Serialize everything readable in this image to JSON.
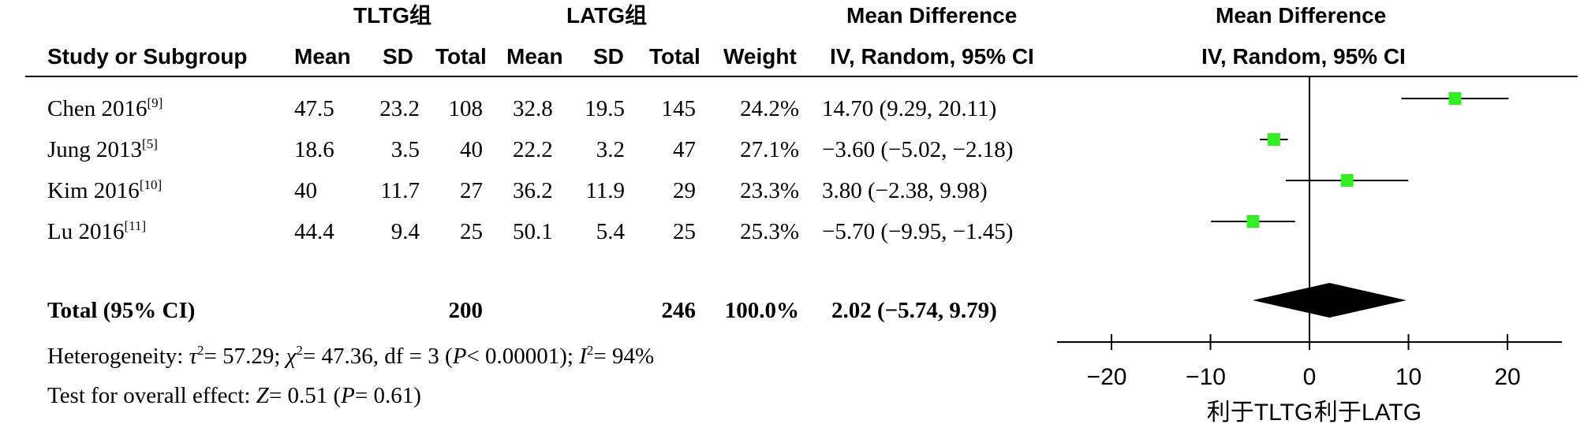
{
  "header": {
    "group1": "TLTG组",
    "group2": "LATG组",
    "md_table": "Mean Difference",
    "md_plot": "Mean Difference",
    "study_col": "Study or Subgroup",
    "mean1": "Mean",
    "sd1": "SD",
    "total1": "Total",
    "mean2": "Mean",
    "sd2": "SD",
    "total2": "Total",
    "weight": "Weight",
    "ci_table": "IV, Random, 95% CI",
    "ci_plot": "IV, Random, 95% CI"
  },
  "rows": [
    {
      "study": "Chen 2016",
      "ref": "[9]",
      "mean1": "47.5",
      "sd1": "23.2",
      "total1": "108",
      "mean2": "32.8",
      "sd2": "19.5",
      "total2": "145",
      "weight": "24.2%",
      "ci": "14.70 (9.29, 20.11)"
    },
    {
      "study": "Jung 2013",
      "ref": "[5]",
      "mean1": "18.6",
      "sd1": "3.5",
      "total1": "40",
      "mean2": "22.2",
      "sd2": "3.2",
      "total2": "47",
      "weight": "27.1%",
      "ci": "−3.60 (−5.02, −2.18)"
    },
    {
      "study": "Kim 2016",
      "ref": "[10]",
      "mean1": "40",
      "sd1": "11.7",
      "total1": "27",
      "mean2": "36.2",
      "sd2": "11.9",
      "total2": "29",
      "weight": "23.3%",
      "ci": "3.80 (−2.38, 9.98)"
    },
    {
      "study": "Lu 2016",
      "ref": "[11]",
      "mean1": "44.4",
      "sd1": "9.4",
      "total1": "25",
      "mean2": "50.1",
      "sd2": "5.4",
      "total2": "25",
      "weight": "25.3%",
      "ci": "−5.70 (−9.95, −1.45)"
    }
  ],
  "total_row": {
    "label": "Total (95% CI)",
    "total1": "200",
    "total2": "246",
    "weight": "100.0%",
    "ci": "2.02 (−5.74, 9.79)"
  },
  "heterogeneity": {
    "label": "Heterogeneity: ",
    "tau": "τ",
    "tau_exp": "2",
    "tau_val": "= 57.29; ",
    "chi": "χ",
    "chi_exp": "2",
    "chi_val": "= 47.36, df = 3 (",
    "p": "P",
    "p_val": "< 0.00001); ",
    "i": "I",
    "i_exp": "2",
    "i_val": "= 94%"
  },
  "overall": {
    "label": "Test for overall effect: ",
    "z": "Z",
    "z_val": "= 0.51 (",
    "p": "P",
    "p_val": "= 0.61)"
  },
  "axis_left_label": "利于TLTG",
  "axis_right_label": "利于LATG",
  "colors": {
    "marker": "#33ee22",
    "line": "#000000",
    "diamond": "#000000"
  },
  "chart_data": {
    "type": "forest",
    "title": "",
    "xlabel": "",
    "xlim": [
      -25,
      25
    ],
    "xticks": [
      -20,
      -10,
      0,
      10,
      20
    ],
    "studies": [
      {
        "name": "Chen 2016",
        "estimate": 14.7,
        "lower": 9.29,
        "upper": 20.11,
        "weight": 24.2
      },
      {
        "name": "Jung 2013",
        "estimate": -3.6,
        "lower": -5.02,
        "upper": -2.18,
        "weight": 27.1
      },
      {
        "name": "Kim 2016",
        "estimate": 3.8,
        "lower": -2.38,
        "upper": 9.98,
        "weight": 23.3
      },
      {
        "name": "Lu 2016",
        "estimate": -5.7,
        "lower": -9.95,
        "upper": -1.45,
        "weight": 25.3
      }
    ],
    "pooled": {
      "estimate": 2.02,
      "lower": -5.74,
      "upper": 9.79
    }
  }
}
